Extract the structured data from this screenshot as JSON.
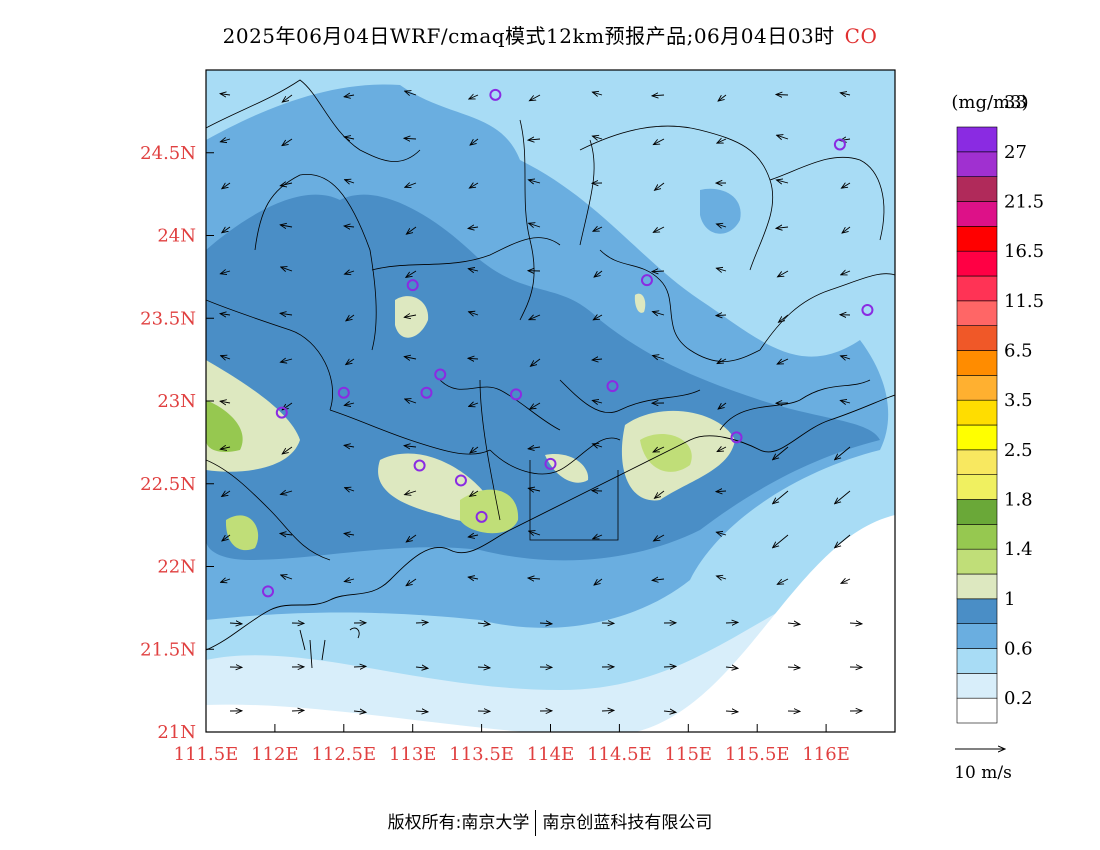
{
  "title": {
    "text": "2025年06月04日WRF/cmaq模式12km预报产品;06月04日03时",
    "species": "CO",
    "species_color": "#e03030"
  },
  "map": {
    "lon_range": [
      111.5,
      116.5
    ],
    "lat_range": [
      21.0,
      25.0
    ],
    "lon_ticks": [
      {
        "lon": 111.5,
        "label": "111.5E"
      },
      {
        "lon": 112.0,
        "label": "112E"
      },
      {
        "lon": 112.5,
        "label": "112.5E"
      },
      {
        "lon": 113.0,
        "label": "113E"
      },
      {
        "lon": 113.5,
        "label": "113.5E"
      },
      {
        "lon": 114.0,
        "label": "114E"
      },
      {
        "lon": 114.5,
        "label": "114.5E"
      },
      {
        "lon": 115.0,
        "label": "115E"
      },
      {
        "lon": 115.5,
        "label": "115.5E"
      },
      {
        "lon": 116.0,
        "label": "116E"
      }
    ],
    "lat_ticks": [
      {
        "lat": 21.0,
        "label": "21N"
      },
      {
        "lat": 21.5,
        "label": "21.5N"
      },
      {
        "lat": 22.0,
        "label": "22N"
      },
      {
        "lat": 22.5,
        "label": "22.5N"
      },
      {
        "lat": 23.0,
        "label": "23N"
      },
      {
        "lat": 23.5,
        "label": "23.5N"
      },
      {
        "lat": 24.0,
        "label": "24N"
      },
      {
        "lat": 24.5,
        "label": "24.5N"
      }
    ],
    "tick_label_color": "#e04040",
    "stations": [
      {
        "lon": 113.6,
        "lat": 24.85
      },
      {
        "lon": 116.1,
        "lat": 24.55
      },
      {
        "lon": 113.0,
        "lat": 23.7
      },
      {
        "lon": 114.7,
        "lat": 23.73
      },
      {
        "lon": 116.3,
        "lat": 23.55
      },
      {
        "lon": 112.5,
        "lat": 23.05
      },
      {
        "lon": 113.1,
        "lat": 23.05
      },
      {
        "lon": 113.2,
        "lat": 23.16
      },
      {
        "lon": 113.75,
        "lat": 23.04
      },
      {
        "lon": 114.45,
        "lat": 23.09
      },
      {
        "lon": 112.05,
        "lat": 22.93
      },
      {
        "lon": 113.05,
        "lat": 22.61
      },
      {
        "lon": 113.35,
        "lat": 22.52
      },
      {
        "lon": 113.5,
        "lat": 22.3
      },
      {
        "lon": 114.0,
        "lat": 22.62
      },
      {
        "lon": 115.35,
        "lat": 22.78
      },
      {
        "lon": 111.95,
        "lat": 21.85
      }
    ]
  },
  "legend": {
    "unit": "(mg/m3)",
    "colors": [
      "#ffffff",
      "#d8eefa",
      "#a8dcf5",
      "#6aaee0",
      "#4a8ec6",
      "#dde8c0",
      "#c0de78",
      "#96c850",
      "#6aa838",
      "#f0f060",
      "#f8e860",
      "#ffff00",
      "#ffdd00",
      "#ffb030",
      "#ff8c00",
      "#f05828",
      "#ff6666",
      "#ff3355",
      "#ff0044",
      "#ff0000",
      "#dd1188",
      "#b02a5a",
      "#a030d0",
      "#8a2be2"
    ],
    "labels": [
      "0.2",
      "0.6",
      "1",
      "1.4",
      "1.8",
      "2.5",
      "3.5",
      "6.5",
      "11.5",
      "16.5",
      "21.5",
      "27",
      "33"
    ]
  },
  "wind_reference": {
    "label": "10 m/s"
  },
  "footer": {
    "left": "版权所有:南京大学",
    "right": "南京创蓝科技有限公司"
  }
}
